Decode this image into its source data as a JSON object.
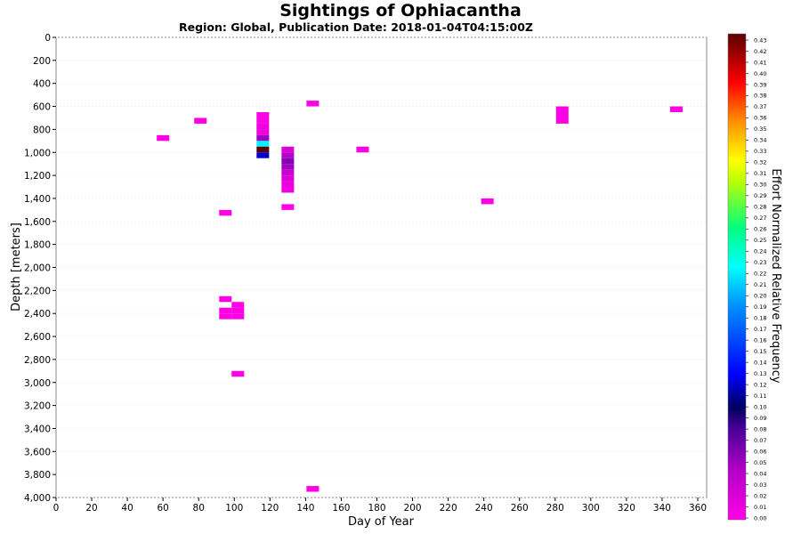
{
  "chart_data": {
    "type": "heatmap",
    "title": "Sightings of Ophiacantha",
    "subtitle": "Region: Global, Publication Date: 2018-01-04T04:15:00Z",
    "xlabel": "Day of Year",
    "ylabel": "Depth [meters]",
    "xlim": [
      0,
      365
    ],
    "ylim": [
      0,
      4000
    ],
    "y_inverted": true,
    "x_ticks": [
      "0",
      "20",
      "40",
      "60",
      "80",
      "100",
      "120",
      "140",
      "160",
      "180",
      "200",
      "220",
      "240",
      "260",
      "280",
      "300",
      "320",
      "340",
      "360"
    ],
    "y_ticks": [
      "0",
      "200",
      "400",
      "600",
      "800",
      "1,000",
      "1,200",
      "1,400",
      "1,600",
      "1,800",
      "2,000",
      "2,200",
      "2,400",
      "2,600",
      "2,800",
      "3,000",
      "3,200",
      "3,400",
      "3,600",
      "3,800",
      "4,000"
    ],
    "colorbar": {
      "label": "Effort Normalized Relative Frequency",
      "range": [
        0,
        0.43
      ],
      "ticks": [
        "0.00",
        "0.01",
        "0.02",
        "0.03",
        "0.04",
        "0.05",
        "0.06",
        "0.07",
        "0.08",
        "0.09",
        "0.10",
        "0.11",
        "0.12",
        "0.13",
        "0.14",
        "0.15",
        "0.16",
        "0.17",
        "0.18",
        "0.19",
        "0.20",
        "0.21",
        "0.22",
        "0.23",
        "0.24",
        "0.25",
        "0.26",
        "0.27",
        "0.28",
        "0.29",
        "0.30",
        "0.31",
        "0.32",
        "0.33",
        "0.34",
        "0.35",
        "0.36",
        "0.37",
        "0.38",
        "0.39",
        "0.40",
        "0.41",
        "0.42",
        "0.43"
      ]
    },
    "cells": [
      {
        "day": 144,
        "depth": 575,
        "value": 0.0
      },
      {
        "day": 81,
        "depth": 725,
        "value": 0.0
      },
      {
        "day": 60,
        "depth": 875,
        "value": 0.0
      },
      {
        "day": 116,
        "depth": 675,
        "value": 0.0
      },
      {
        "day": 116,
        "depth": 725,
        "value": 0.0
      },
      {
        "day": 116,
        "depth": 775,
        "value": 0.01
      },
      {
        "day": 116,
        "depth": 825,
        "value": 0.01
      },
      {
        "day": 116,
        "depth": 875,
        "value": 0.05
      },
      {
        "day": 116,
        "depth": 925,
        "value": 0.22
      },
      {
        "day": 116,
        "depth": 975,
        "value": 0.43
      },
      {
        "day": 116,
        "depth": 1025,
        "value": 0.12
      },
      {
        "day": 130,
        "depth": 975,
        "value": 0.02
      },
      {
        "day": 130,
        "depth": 1025,
        "value": 0.04
      },
      {
        "day": 130,
        "depth": 1075,
        "value": 0.06
      },
      {
        "day": 130,
        "depth": 1125,
        "value": 0.05
      },
      {
        "day": 130,
        "depth": 1175,
        "value": 0.03
      },
      {
        "day": 130,
        "depth": 1225,
        "value": 0.02
      },
      {
        "day": 130,
        "depth": 1275,
        "value": 0.01
      },
      {
        "day": 130,
        "depth": 1325,
        "value": 0.01
      },
      {
        "day": 130,
        "depth": 1475,
        "value": 0.0
      },
      {
        "day": 172,
        "depth": 975,
        "value": 0.0
      },
      {
        "day": 95,
        "depth": 1525,
        "value": 0.0
      },
      {
        "day": 242,
        "depth": 1425,
        "value": 0.0
      },
      {
        "day": 284,
        "depth": 625,
        "value": 0.0
      },
      {
        "day": 284,
        "depth": 675,
        "value": 0.0
      },
      {
        "day": 284,
        "depth": 725,
        "value": 0.0
      },
      {
        "day": 348,
        "depth": 625,
        "value": 0.0
      },
      {
        "day": 95,
        "depth": 2275,
        "value": 0.0
      },
      {
        "day": 102,
        "depth": 2325,
        "value": 0.0
      },
      {
        "day": 95,
        "depth": 2375,
        "value": 0.0
      },
      {
        "day": 102,
        "depth": 2375,
        "value": 0.0
      },
      {
        "day": 95,
        "depth": 2425,
        "value": 0.0
      },
      {
        "day": 102,
        "depth": 2425,
        "value": 0.0
      },
      {
        "day": 102,
        "depth": 2925,
        "value": 0.0
      },
      {
        "day": 144,
        "depth": 3925,
        "value": 0.0
      }
    ]
  }
}
